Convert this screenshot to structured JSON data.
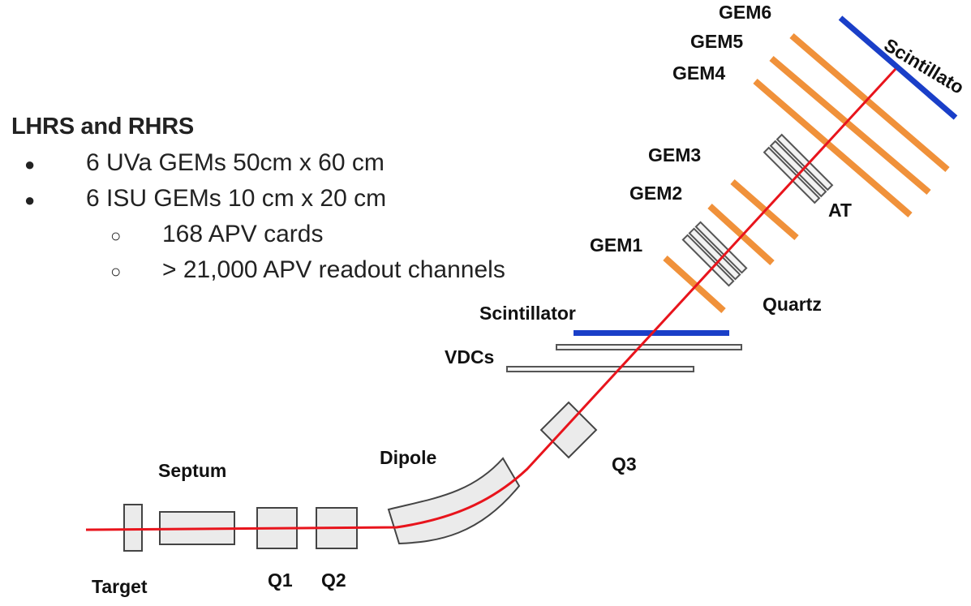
{
  "heading": "LHRS and RHRS",
  "bullets": [
    {
      "marker": "●",
      "text": "6 UVa GEMs  50cm x 60 cm"
    },
    {
      "marker": "●",
      "text": "6 ISU GEMs   10 cm x 20 cm"
    },
    {
      "marker": "○",
      "text": "168 APV cards"
    },
    {
      "marker": "○",
      "text": "> 21,000 APV readout channels"
    }
  ],
  "diagram": {
    "labels": {
      "target": "Target",
      "septum": "Septum",
      "q1": "Q1",
      "q2": "Q2",
      "dipole": "Dipole",
      "q3": "Q3",
      "vdcs": "VDCs",
      "scintillator_lower": "Scintillator",
      "gem1": "GEM1",
      "gem2": "GEM2",
      "gem3": "GEM3",
      "gem4": "GEM4",
      "gem5": "GEM5",
      "gem6": "GEM6",
      "quartz": "Quartz",
      "at": "AT",
      "scintillator_upper": "Scintillato"
    },
    "colors": {
      "beam": "#e8141c",
      "gem": "#f0913a",
      "scintillator": "#1a3fc8",
      "detector_box": "#ebebeb"
    }
  }
}
